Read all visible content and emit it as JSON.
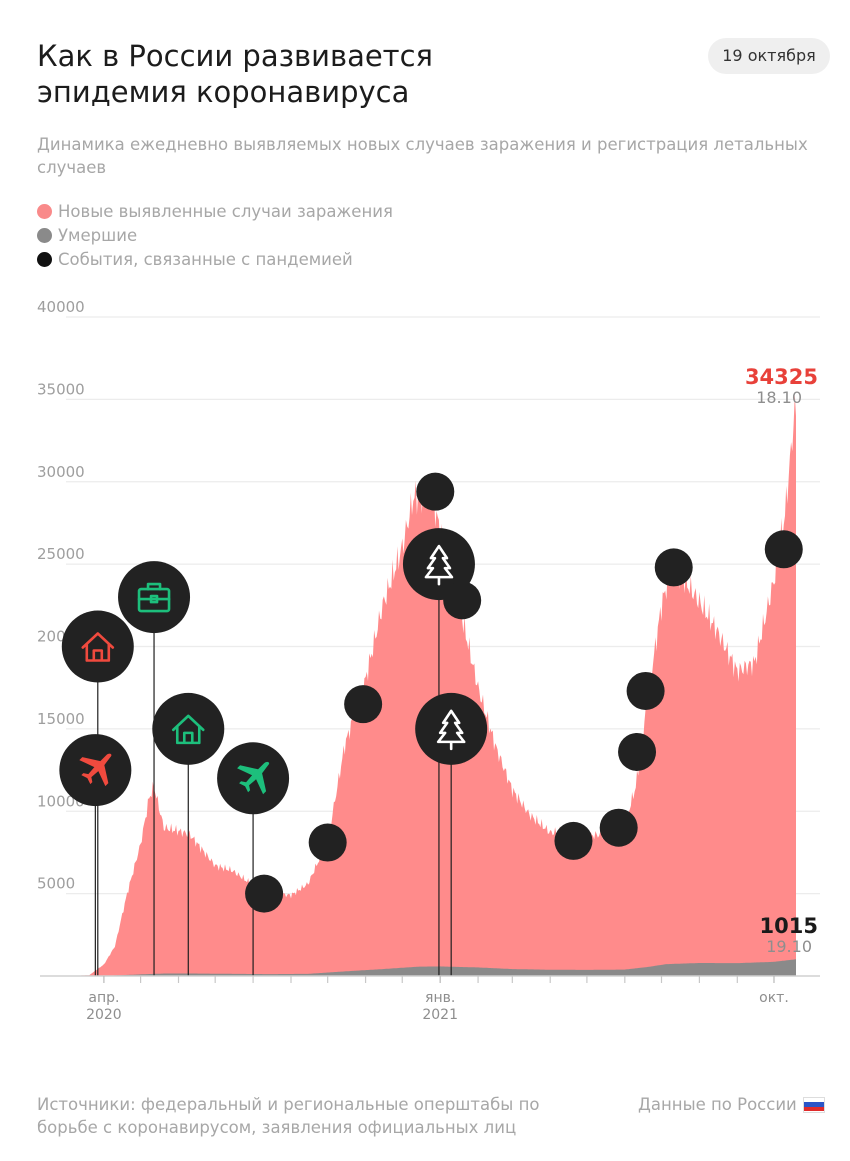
{
  "header": {
    "title_line1": "Как в России развивается",
    "title_line2": "эпидемия коронавируса",
    "date": "19 октября",
    "subtitle": "Динамика ежедневно выявляемых новых случаев заражения и регистрация летальных случаев"
  },
  "legend": [
    {
      "label": "Новые выявленные случаи заражения",
      "color": "#f98a8a"
    },
    {
      "label": "Умершие",
      "color": "#8a8a8a"
    },
    {
      "label": "События, связанные с пандемией",
      "color": "#111111"
    }
  ],
  "footer": {
    "sources": "Источники: федеральный и региональные оперштабы по борьбе с коронавирусом, заявления официальных лиц",
    "data_scope": "Данные по России"
  },
  "chart_data": {
    "type": "area",
    "x_start": "2020-03-01",
    "x_end": "2021-10-19",
    "ylim": [
      0,
      40000
    ],
    "yticks": [
      5000,
      10000,
      15000,
      20000,
      25000,
      30000,
      35000,
      40000
    ],
    "ytick_labels": [
      "5000",
      "10000",
      "15000",
      "20000",
      "25000",
      "30000",
      "35000",
      "40000"
    ],
    "xticks": [
      {
        "date": "2020-04-01",
        "label": "апр.",
        "year": "2020"
      },
      {
        "date": "2021-01-01",
        "label": "янв.",
        "year": "2021"
      },
      {
        "date": "2021-10-01",
        "label": "окт.",
        "year": ""
      }
    ],
    "minor_xtick_dates": [
      "2020-05-01",
      "2020-06-01",
      "2020-07-01",
      "2020-08-01",
      "2020-09-01",
      "2020-10-01",
      "2020-11-01",
      "2020-12-01",
      "2021-02-01",
      "2021-03-01",
      "2021-04-01",
      "2021-05-01",
      "2021-06-01",
      "2021-07-01",
      "2021-08-01",
      "2021-09-01"
    ],
    "grid": true,
    "series": [
      {
        "name": "Новые выявленные случаи заражения",
        "color": "#ff8b8b",
        "points": [
          [
            "2020-03-01",
            0
          ],
          [
            "2020-03-20",
            50
          ],
          [
            "2020-04-01",
            700
          ],
          [
            "2020-04-10",
            1800
          ],
          [
            "2020-04-20",
            5000
          ],
          [
            "2020-05-01",
            8000
          ],
          [
            "2020-05-08",
            10800
          ],
          [
            "2020-05-12",
            11500
          ],
          [
            "2020-05-20",
            9000
          ],
          [
            "2020-06-01",
            8800
          ],
          [
            "2020-06-10",
            8600
          ],
          [
            "2020-06-20",
            7700
          ],
          [
            "2020-07-01",
            6700
          ],
          [
            "2020-07-15",
            6400
          ],
          [
            "2020-08-01",
            5500
          ],
          [
            "2020-08-15",
            5000
          ],
          [
            "2020-09-01",
            4900
          ],
          [
            "2020-09-15",
            5600
          ],
          [
            "2020-10-01",
            8200
          ],
          [
            "2020-10-15",
            14000
          ],
          [
            "2020-11-01",
            18000
          ],
          [
            "2020-11-15",
            22500
          ],
          [
            "2020-12-01",
            26000
          ],
          [
            "2020-12-10",
            29000
          ],
          [
            "2020-12-24",
            29500
          ],
          [
            "2021-01-01",
            27000
          ],
          [
            "2021-01-15",
            23000
          ],
          [
            "2021-02-01",
            17500
          ],
          [
            "2021-02-15",
            14000
          ],
          [
            "2021-03-01",
            11300
          ],
          [
            "2021-03-15",
            9800
          ],
          [
            "2021-04-01",
            8700
          ],
          [
            "2021-04-15",
            8800
          ],
          [
            "2021-05-01",
            8500
          ],
          [
            "2021-05-15",
            8600
          ],
          [
            "2021-06-01",
            9200
          ],
          [
            "2021-06-10",
            11500
          ],
          [
            "2021-06-20",
            17000
          ],
          [
            "2021-07-01",
            22500
          ],
          [
            "2021-07-10",
            25000
          ],
          [
            "2021-07-20",
            24000
          ],
          [
            "2021-08-01",
            22700
          ],
          [
            "2021-08-15",
            21000
          ],
          [
            "2021-09-01",
            18500
          ],
          [
            "2021-09-15",
            19000
          ],
          [
            "2021-10-01",
            24000
          ],
          [
            "2021-10-10",
            28000
          ],
          [
            "2021-10-18",
            34325
          ],
          [
            "2021-10-19",
            34325
          ]
        ]
      },
      {
        "name": "Умершие",
        "color": "#8a8a8a",
        "points": [
          [
            "2020-03-01",
            0
          ],
          [
            "2020-04-01",
            5
          ],
          [
            "2020-05-01",
            100
          ],
          [
            "2020-05-20",
            150
          ],
          [
            "2020-06-15",
            150
          ],
          [
            "2020-07-15",
            130
          ],
          [
            "2020-08-15",
            115
          ],
          [
            "2020-09-15",
            130
          ],
          [
            "2020-10-15",
            280
          ],
          [
            "2020-11-15",
            420
          ],
          [
            "2020-12-15",
            570
          ],
          [
            "2021-01-01",
            580
          ],
          [
            "2021-02-01",
            520
          ],
          [
            "2021-03-01",
            420
          ],
          [
            "2021-04-01",
            380
          ],
          [
            "2021-05-01",
            370
          ],
          [
            "2021-06-01",
            390
          ],
          [
            "2021-06-20",
            550
          ],
          [
            "2021-07-05",
            720
          ],
          [
            "2021-08-01",
            790
          ],
          [
            "2021-09-01",
            780
          ],
          [
            "2021-10-01",
            860
          ],
          [
            "2021-10-19",
            1015
          ]
        ]
      }
    ],
    "annotations": [
      {
        "value": "34325",
        "date_label": "18.10",
        "series": "Новые выявленные случаи заражения",
        "color": "#e8413a"
      },
      {
        "value": "1015",
        "date_label": "19.10",
        "series": "Умершие",
        "color": "#1a1a1a"
      }
    ],
    "events": [
      {
        "date": "2020-03-27",
        "y": 20000,
        "size": "large",
        "icon": "home-icon",
        "icon_color": "#f04a3e",
        "stem": true
      },
      {
        "date": "2020-03-25",
        "y": 12500,
        "size": "large",
        "icon": "plane-icon",
        "icon_color": "#f04a3e",
        "stem": true
      },
      {
        "date": "2020-05-12",
        "y": 23000,
        "size": "large",
        "icon": "briefcase-icon",
        "icon_color": "#1dbf7c",
        "stem": true
      },
      {
        "date": "2020-06-09",
        "y": 15000,
        "size": "large",
        "icon": "home-icon",
        "icon_color": "#1dbf7c",
        "stem": true
      },
      {
        "date": "2020-08-01",
        "y": 12000,
        "size": "large",
        "icon": "plane-icon",
        "icon_color": "#1dbf7c",
        "stem": true
      },
      {
        "date": "2020-08-10",
        "y": 5000,
        "size": "small"
      },
      {
        "date": "2020-10-01",
        "y": 8100,
        "size": "small"
      },
      {
        "date": "2020-10-30",
        "y": 16500,
        "size": "small"
      },
      {
        "date": "2020-12-28",
        "y": 29400,
        "size": "small"
      },
      {
        "date": "2020-12-31",
        "y": 25000,
        "size": "large",
        "icon": "tree-icon",
        "icon_color": "#ffffff",
        "stem": true
      },
      {
        "date": "2021-01-10",
        "y": 15000,
        "size": "large",
        "icon": "tree-icon",
        "icon_color": "#ffffff",
        "stem": true
      },
      {
        "date": "2021-01-19",
        "y": 22800,
        "size": "small"
      },
      {
        "date": "2021-04-20",
        "y": 8200,
        "size": "small"
      },
      {
        "date": "2021-05-27",
        "y": 9000,
        "size": "small"
      },
      {
        "date": "2021-06-11",
        "y": 13600,
        "size": "small"
      },
      {
        "date": "2021-06-18",
        "y": 17300,
        "size": "small"
      },
      {
        "date": "2021-07-11",
        "y": 24800,
        "size": "small"
      },
      {
        "date": "2021-10-09",
        "y": 25900,
        "size": "small"
      }
    ]
  }
}
